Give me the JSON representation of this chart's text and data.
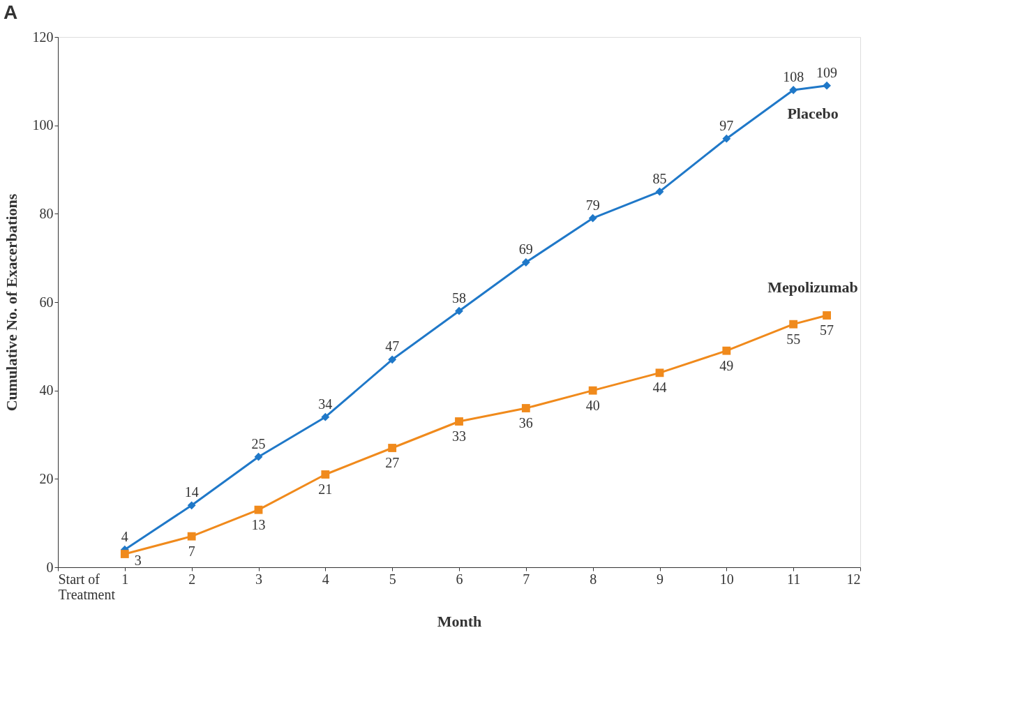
{
  "chart_data": {
    "type": "line",
    "xlabel": "Month",
    "ylabel": "Cumulative No. of Exacerbations",
    "annotations": [
      "A"
    ],
    "xlim": [
      0,
      12
    ],
    "xticks": [
      {
        "value": 0,
        "label": "Start of Treatment"
      },
      1,
      2,
      3,
      4,
      5,
      6,
      7,
      8,
      9,
      10,
      11,
      12
    ],
    "ylim": [
      0,
      120
    ],
    "yticks": [
      0,
      20,
      40,
      60,
      80,
      100,
      120
    ],
    "x": [
      1,
      2,
      3,
      4,
      5,
      6,
      7,
      8,
      9,
      10,
      11,
      11.5
    ],
    "series": [
      {
        "name": "Placebo",
        "color": "#1f78c8",
        "marker": "diamond",
        "values": [
          4,
          14,
          25,
          34,
          47,
          58,
          69,
          79,
          85,
          97,
          108,
          109
        ]
      },
      {
        "name": "Mepolizumab",
        "color": "#f08a1c",
        "marker": "square",
        "values": [
          3,
          7,
          13,
          21,
          27,
          33,
          36,
          40,
          44,
          49,
          55,
          57
        ]
      }
    ],
    "data_labels": true,
    "grid": false,
    "legend": false,
    "line_style": "solid"
  }
}
